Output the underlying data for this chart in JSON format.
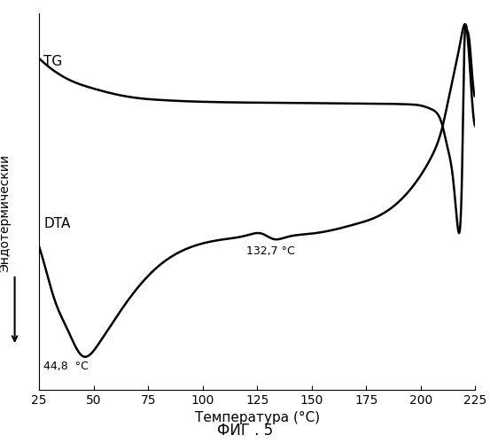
{
  "title": "ФИГ . 5",
  "xlabel": "Температура (°C)",
  "ylabel": "Эндотермический",
  "xlim": [
    25,
    225
  ],
  "ylim": [
    0.0,
    1.0
  ],
  "xticks": [
    25,
    50,
    75,
    100,
    125,
    150,
    175,
    200,
    225
  ],
  "label_TG": "TG",
  "label_DTA": "DTA",
  "annotation_448": "44,8  °C",
  "annotation_1327": "132,7 °C",
  "line_color": "#000000",
  "bg_color": "#ffffff",
  "linewidth": 1.8,
  "tg_x": [
    25,
    30,
    40,
    50,
    60,
    70,
    80,
    100,
    120,
    140,
    160,
    180,
    195,
    200,
    205,
    208,
    210,
    212,
    215,
    217,
    219,
    220,
    221,
    222,
    223,
    225
  ],
  "tg_y": [
    0.88,
    0.855,
    0.82,
    0.8,
    0.785,
    0.775,
    0.77,
    0.765,
    0.763,
    0.762,
    0.761,
    0.76,
    0.758,
    0.755,
    0.745,
    0.73,
    0.7,
    0.65,
    0.55,
    0.43,
    0.6,
    0.92,
    0.96,
    0.94,
    0.88,
    0.78
  ],
  "dta_x": [
    25,
    28,
    32,
    38,
    44.8,
    52,
    60,
    70,
    80,
    95,
    110,
    120,
    127,
    132.7,
    138,
    150,
    160,
    170,
    180,
    190,
    200,
    205,
    210,
    213,
    216,
    218,
    219,
    220,
    221,
    222,
    225
  ],
  "dta_y": [
    0.38,
    0.32,
    0.24,
    0.16,
    0.09,
    0.12,
    0.19,
    0.27,
    0.33,
    0.38,
    0.4,
    0.41,
    0.415,
    0.4,
    0.405,
    0.415,
    0.425,
    0.44,
    0.46,
    0.5,
    0.57,
    0.62,
    0.7,
    0.78,
    0.86,
    0.92,
    0.95,
    0.97,
    0.96,
    0.9,
    0.7
  ]
}
